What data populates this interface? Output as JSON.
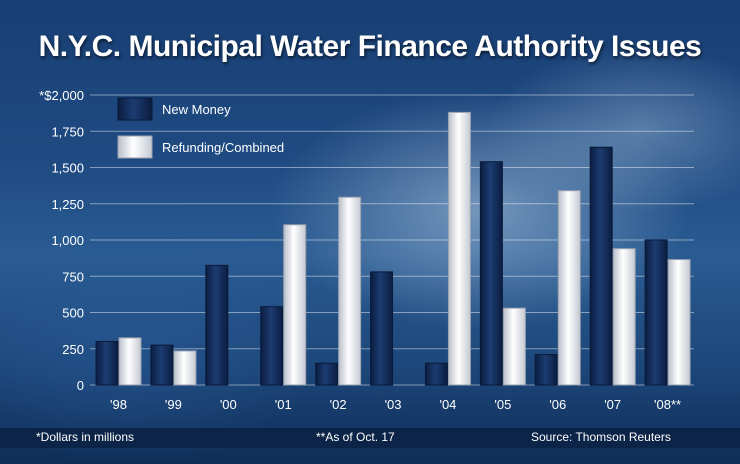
{
  "chart_data": {
    "type": "bar",
    "title": "N.Y.C. Municipal Water Finance Authority Issues",
    "categories": [
      "'98",
      "'99",
      "'00",
      "'01",
      "'02",
      "'03",
      "'04",
      "'05",
      "'06",
      "'07",
      "'08**"
    ],
    "series": [
      {
        "name": "New Money",
        "values": [
          300,
          275,
          825,
          540,
          150,
          780,
          150,
          1540,
          210,
          1640,
          1000
        ]
      },
      {
        "name": "Refunding/Combined",
        "values": [
          325,
          235,
          null,
          1105,
          1295,
          null,
          1880,
          530,
          1340,
          940,
          865
        ]
      }
    ],
    "y_ticks": [
      "0",
      "250",
      "500",
      "750",
      "1,000",
      "1,250",
      "1,500",
      "1,750",
      "*$2,000"
    ],
    "ylim": [
      0,
      2000
    ],
    "grid": true,
    "legend_position": "top-left",
    "colors": {
      "new_money": "#132d5e",
      "refunding": "#e8eaee"
    }
  },
  "footer": {
    "units_note": "*Dollars in millions",
    "date_note": "**As of Oct. 17",
    "source": "Source: Thomson Reuters"
  }
}
